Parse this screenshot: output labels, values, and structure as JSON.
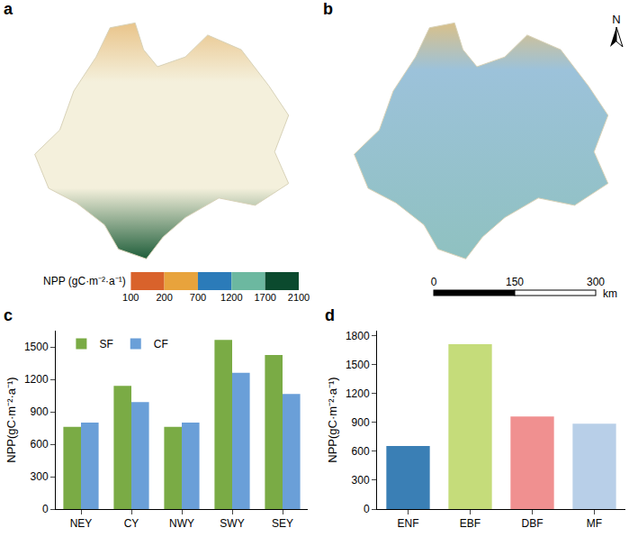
{
  "maps": {
    "panels": [
      {
        "panel": "a"
      },
      {
        "panel": "b"
      }
    ],
    "north": "N",
    "scale_bar": {
      "ticks": [
        0,
        150,
        300
      ],
      "unit": "km"
    },
    "colorbar": {
      "title": "NPP (gC·m⁻²·a⁻¹)",
      "ticks": [
        100,
        200,
        700,
        1200,
        1700,
        2100
      ],
      "colors": [
        "#d9622b",
        "#e8a33c",
        "#2b7bb9",
        "#6cb8a0",
        "#0b4a2e"
      ]
    }
  },
  "chart_data": [
    {
      "panel": "c",
      "type": "bar",
      "y_label": "NPP(gC·m⁻²·a⁻¹)",
      "categories": [
        "NEY",
        "CY",
        "NWY",
        "SWY",
        "SEY"
      ],
      "series": [
        {
          "name": "SF",
          "color": "#7aab45",
          "values": [
            760,
            1140,
            760,
            1565,
            1425
          ]
        },
        {
          "name": "CF",
          "color": "#6a9fd8",
          "values": [
            800,
            990,
            800,
            1260,
            1065
          ]
        }
      ],
      "ylim": [
        0,
        1650
      ],
      "yticks": [
        0,
        300,
        600,
        900,
        1200,
        1500
      ],
      "legend": "top-left",
      "grid": false
    },
    {
      "panel": "d",
      "type": "bar",
      "y_label": "NPP(gC·m⁻²·a⁻¹)",
      "categories": [
        "ENF",
        "EBF",
        "DBF",
        "MF"
      ],
      "values": [
        655,
        1710,
        960,
        885
      ],
      "colors": [
        "#3a7fb5",
        "#c5dc7a",
        "#f09090",
        "#b8cfe8"
      ],
      "ylim": [
        0,
        1850
      ],
      "yticks": [
        0,
        300,
        600,
        900,
        1200,
        1500,
        1800
      ],
      "grid": false
    }
  ]
}
